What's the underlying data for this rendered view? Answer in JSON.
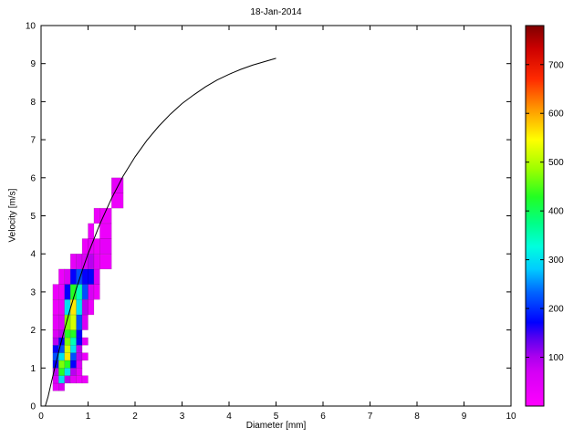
{
  "figure": {
    "background": "#ffffff"
  },
  "chart_data": {
    "type": "heatmap",
    "title": "18-Jan-2014",
    "xlabel": "Diameter [mm]",
    "ylabel": "Velocity [m/s]",
    "xlim": [
      0,
      10
    ],
    "ylim": [
      0,
      10
    ],
    "xticks": [
      0,
      1,
      2,
      3,
      4,
      5,
      6,
      7,
      8,
      9,
      10
    ],
    "yticks": [
      0,
      1,
      2,
      3,
      4,
      5,
      6,
      7,
      8,
      9,
      10
    ],
    "grid": false,
    "cell_format": [
      "diameter_left_mm",
      "velocity_bottom_ms",
      "bin_width_mm",
      "bin_height_ms",
      "count"
    ],
    "cells": [
      [
        0.25,
        0.4,
        0.125,
        0.2,
        40
      ],
      [
        0.25,
        0.6,
        0.125,
        0.2,
        60
      ],
      [
        0.25,
        0.8,
        0.125,
        0.2,
        90
      ],
      [
        0.25,
        1.0,
        0.125,
        0.2,
        170
      ],
      [
        0.25,
        1.2,
        0.125,
        0.2,
        220
      ],
      [
        0.25,
        1.4,
        0.125,
        0.2,
        170
      ],
      [
        0.25,
        1.6,
        0.125,
        0.2,
        90
      ],
      [
        0.25,
        1.8,
        0.125,
        0.2,
        60
      ],
      [
        0.25,
        2.0,
        0.125,
        0.4,
        40
      ],
      [
        0.25,
        2.4,
        0.125,
        0.4,
        30
      ],
      [
        0.25,
        2.8,
        0.125,
        0.4,
        30
      ],
      [
        0.375,
        0.4,
        0.125,
        0.2,
        60
      ],
      [
        0.375,
        0.6,
        0.125,
        0.2,
        300
      ],
      [
        0.375,
        0.8,
        0.125,
        0.2,
        430
      ],
      [
        0.375,
        1.0,
        0.125,
        0.2,
        470
      ],
      [
        0.375,
        1.2,
        0.125,
        0.2,
        300
      ],
      [
        0.375,
        1.4,
        0.125,
        0.2,
        220
      ],
      [
        0.375,
        1.6,
        0.125,
        0.2,
        170
      ],
      [
        0.375,
        1.8,
        0.125,
        0.2,
        90
      ],
      [
        0.375,
        2.0,
        0.125,
        0.4,
        60
      ],
      [
        0.375,
        2.4,
        0.125,
        0.4,
        40
      ],
      [
        0.375,
        2.8,
        0.125,
        0.4,
        30
      ],
      [
        0.375,
        3.2,
        0.125,
        0.4,
        30
      ],
      [
        0.5,
        0.6,
        0.125,
        0.2,
        90
      ],
      [
        0.5,
        0.8,
        0.125,
        0.2,
        300
      ],
      [
        0.5,
        1.0,
        0.125,
        0.2,
        430
      ],
      [
        0.5,
        1.2,
        0.125,
        0.2,
        560
      ],
      [
        0.5,
        1.4,
        0.125,
        0.2,
        520
      ],
      [
        0.5,
        1.6,
        0.125,
        0.2,
        470
      ],
      [
        0.5,
        1.8,
        0.125,
        0.2,
        430
      ],
      [
        0.5,
        2.0,
        0.125,
        0.4,
        470
      ],
      [
        0.5,
        2.4,
        0.125,
        0.4,
        300
      ],
      [
        0.5,
        2.8,
        0.125,
        0.4,
        170
      ],
      [
        0.5,
        3.2,
        0.125,
        0.4,
        60
      ],
      [
        0.625,
        0.6,
        0.125,
        0.2,
        40
      ],
      [
        0.625,
        0.8,
        0.125,
        0.2,
        90
      ],
      [
        0.625,
        1.0,
        0.125,
        0.2,
        170
      ],
      [
        0.625,
        1.2,
        0.125,
        0.2,
        220
      ],
      [
        0.625,
        1.4,
        0.125,
        0.2,
        300
      ],
      [
        0.625,
        1.6,
        0.125,
        0.2,
        350
      ],
      [
        0.625,
        1.8,
        0.125,
        0.2,
        430
      ],
      [
        0.625,
        2.0,
        0.125,
        0.4,
        520
      ],
      [
        0.625,
        2.4,
        0.125,
        0.4,
        560
      ],
      [
        0.625,
        2.8,
        0.125,
        0.4,
        430
      ],
      [
        0.625,
        3.2,
        0.125,
        0.4,
        170
      ],
      [
        0.625,
        3.6,
        0.125,
        0.4,
        40
      ],
      [
        0.75,
        0.6,
        0.125,
        0.2,
        30
      ],
      [
        0.75,
        0.8,
        0.125,
        0.2,
        40
      ],
      [
        0.75,
        1.0,
        0.125,
        0.2,
        60
      ],
      [
        0.75,
        1.2,
        0.125,
        0.2,
        90
      ],
      [
        0.75,
        1.4,
        0.125,
        0.2,
        90
      ],
      [
        0.75,
        1.6,
        0.125,
        0.2,
        170
      ],
      [
        0.75,
        1.8,
        0.125,
        0.2,
        170
      ],
      [
        0.75,
        2.0,
        0.125,
        0.4,
        220
      ],
      [
        0.75,
        2.4,
        0.125,
        0.4,
        300
      ],
      [
        0.75,
        2.8,
        0.125,
        0.4,
        350
      ],
      [
        0.75,
        3.2,
        0.125,
        0.4,
        220
      ],
      [
        0.75,
        3.6,
        0.125,
        0.4,
        60
      ],
      [
        0.875,
        0.6,
        0.125,
        0.2,
        30
      ],
      [
        0.875,
        1.2,
        0.125,
        0.2,
        30
      ],
      [
        0.875,
        1.6,
        0.125,
        0.2,
        40
      ],
      [
        0.875,
        2.0,
        0.125,
        0.4,
        60
      ],
      [
        0.875,
        2.4,
        0.125,
        0.4,
        90
      ],
      [
        0.875,
        2.8,
        0.125,
        0.4,
        220
      ],
      [
        0.875,
        3.2,
        0.125,
        0.4,
        170
      ],
      [
        0.875,
        3.6,
        0.125,
        0.4,
        60
      ],
      [
        0.875,
        4.0,
        0.125,
        0.4,
        30
      ],
      [
        1.0,
        2.4,
        0.125,
        0.4,
        30
      ],
      [
        1.0,
        2.8,
        0.125,
        0.4,
        60
      ],
      [
        1.0,
        3.2,
        0.125,
        0.4,
        170
      ],
      [
        1.0,
        3.6,
        0.125,
        0.4,
        90
      ],
      [
        1.0,
        4.0,
        0.125,
        0.4,
        40
      ],
      [
        1.0,
        4.4,
        0.125,
        0.4,
        30
      ],
      [
        1.125,
        2.8,
        0.125,
        0.4,
        30
      ],
      [
        1.125,
        3.2,
        0.125,
        0.4,
        60
      ],
      [
        1.125,
        3.6,
        0.125,
        0.4,
        40
      ],
      [
        1.125,
        4.0,
        0.125,
        0.4,
        30
      ],
      [
        1.125,
        4.8,
        0.125,
        0.4,
        30
      ],
      [
        1.25,
        3.6,
        0.25,
        0.4,
        30
      ],
      [
        1.25,
        4.0,
        0.25,
        0.4,
        40
      ],
      [
        1.25,
        4.4,
        0.25,
        0.4,
        30
      ],
      [
        1.25,
        4.8,
        0.25,
        0.4,
        30
      ],
      [
        1.5,
        5.2,
        0.25,
        0.4,
        30
      ],
      [
        1.5,
        5.6,
        0.25,
        0.4,
        40
      ]
    ],
    "curve": {
      "name": "terminal-velocity-curve",
      "color": "#000000",
      "points": [
        [
          0.09,
          0.0
        ],
        [
          0.15,
          0.25
        ],
        [
          0.2,
          0.52
        ],
        [
          0.3,
          1.05
        ],
        [
          0.4,
          1.55
        ],
        [
          0.5,
          2.02
        ],
        [
          0.625,
          2.57
        ],
        [
          0.75,
          3.08
        ],
        [
          0.875,
          3.56
        ],
        [
          1.0,
          4.0
        ],
        [
          1.25,
          4.78
        ],
        [
          1.5,
          5.46
        ],
        [
          1.75,
          6.05
        ],
        [
          2.0,
          6.55
        ],
        [
          2.25,
          6.98
        ],
        [
          2.5,
          7.35
        ],
        [
          2.75,
          7.67
        ],
        [
          3.0,
          7.95
        ],
        [
          3.25,
          8.18
        ],
        [
          3.5,
          8.39
        ],
        [
          3.75,
          8.57
        ],
        [
          4.0,
          8.72
        ],
        [
          4.25,
          8.85
        ],
        [
          4.5,
          8.96
        ],
        [
          4.75,
          9.05
        ],
        [
          5.0,
          9.14
        ]
      ]
    },
    "colorbar": {
      "vmin": 0,
      "vmax": 780,
      "ticks": [
        100,
        200,
        300,
        400,
        500,
        600,
        700
      ],
      "stops": [
        [
          0.0,
          "#ff00ff"
        ],
        [
          0.09,
          "#d400f5"
        ],
        [
          0.13,
          "#aa00ee"
        ],
        [
          0.18,
          "#5500f0"
        ],
        [
          0.22,
          "#0000ff"
        ],
        [
          0.3,
          "#0066ff"
        ],
        [
          0.36,
          "#00ccff"
        ],
        [
          0.42,
          "#00ffdd"
        ],
        [
          0.48,
          "#00ff88"
        ],
        [
          0.55,
          "#22ff22"
        ],
        [
          0.62,
          "#99ff00"
        ],
        [
          0.7,
          "#ffff00"
        ],
        [
          0.78,
          "#ff9900"
        ],
        [
          0.86,
          "#ff2a00"
        ],
        [
          0.94,
          "#cc0000"
        ],
        [
          1.0,
          "#7f0000"
        ]
      ]
    }
  }
}
